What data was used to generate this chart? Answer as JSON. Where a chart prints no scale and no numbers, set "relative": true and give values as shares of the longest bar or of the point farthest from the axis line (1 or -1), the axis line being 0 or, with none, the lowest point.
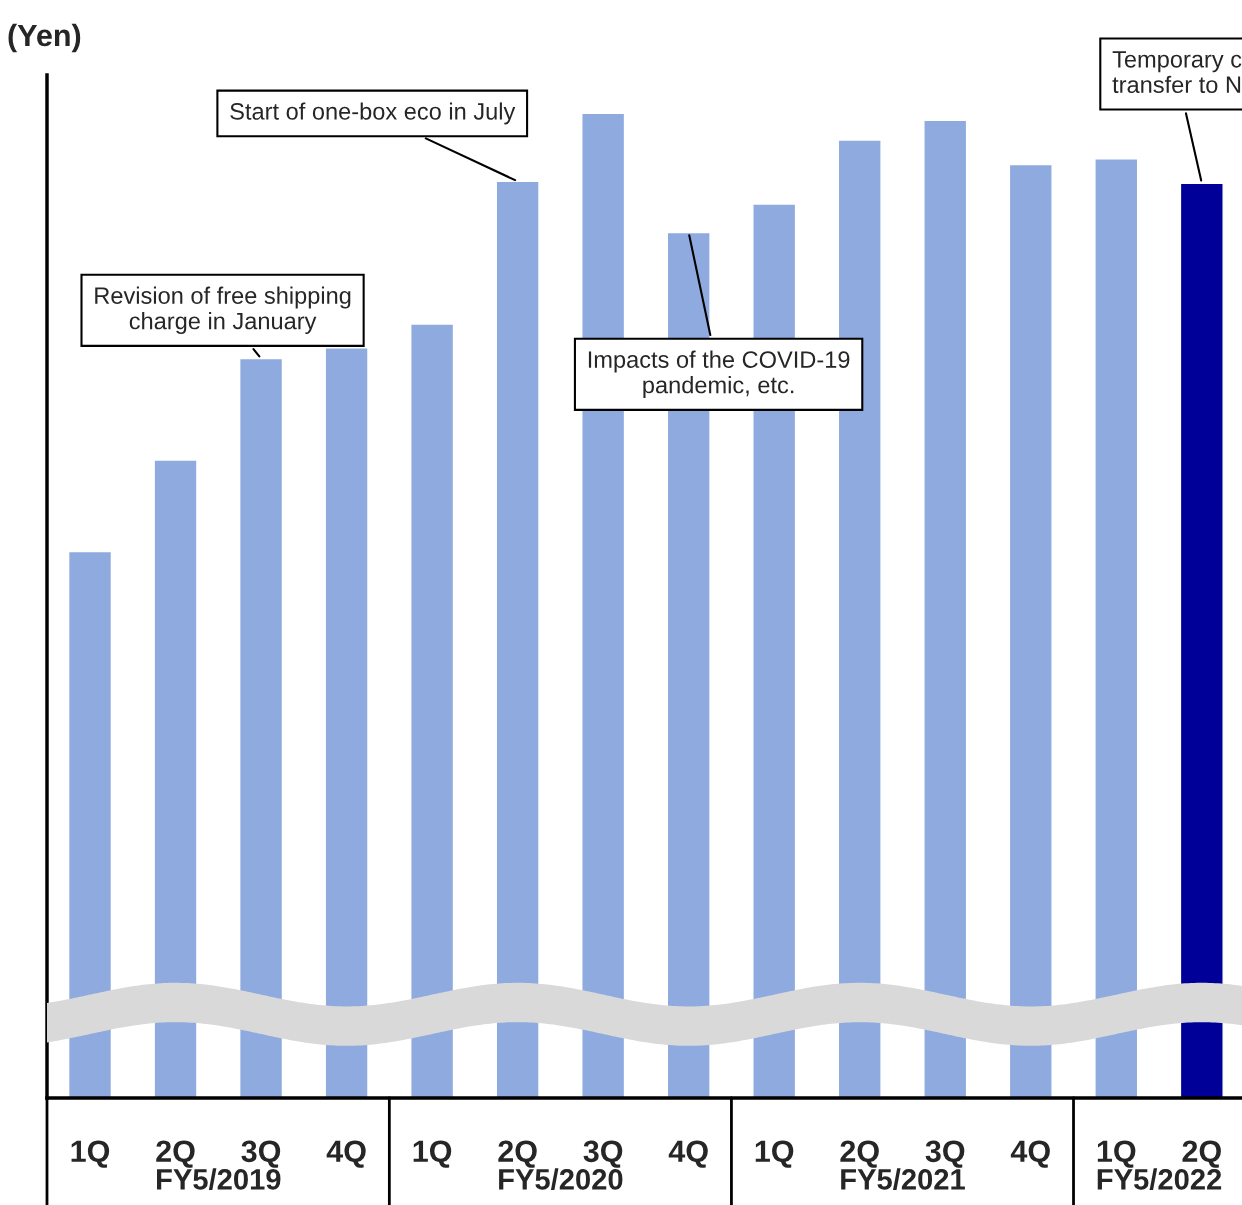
{
  "chart_data": {
    "type": "bar",
    "relative": true,
    "ylabel": "(Yen)",
    "categories": [
      "1Q",
      "2Q",
      "3Q",
      "4Q",
      "1Q",
      "2Q",
      "3Q",
      "4Q",
      "1Q",
      "2Q",
      "3Q",
      "4Q",
      "1Q",
      "2Q"
    ],
    "values": [
      0.555,
      0.648,
      0.751,
      0.762,
      0.786,
      0.931,
      1.0,
      0.879,
      0.908,
      0.973,
      0.993,
      0.948,
      0.954,
      0.929
    ],
    "colors": [
      "#8eaadf",
      "#8eaadf",
      "#8eaadf",
      "#8eaadf",
      "#8eaadf",
      "#8eaadf",
      "#8eaadf",
      "#8eaadf",
      "#8eaadf",
      "#8eaadf",
      "#8eaadf",
      "#8eaadf",
      "#8eaadf",
      "#000099"
    ],
    "annotations": [
      "Revision of free shipping\ncharge in January",
      "Start of one-box eco in July",
      "Impacts of the COVID-19\npandemic, etc.",
      "Temporary c\ntransfer to N",
      "FY5/2019",
      "FY5/2020",
      "FY5/2021",
      "FY5/2022"
    ],
    "grid": false
  }
}
